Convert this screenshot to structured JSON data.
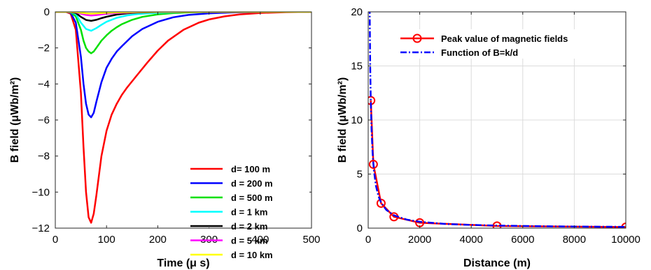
{
  "chart_data": [
    {
      "type": "line",
      "xlabel": "Time (μ s)",
      "ylabel": "B field (μWb/m²)",
      "xlim": [
        0,
        500
      ],
      "ylim": [
        -12,
        0
      ],
      "xticks": [
        0,
        100,
        200,
        300,
        400,
        500
      ],
      "yticks": [
        -12,
        -10,
        -8,
        -6,
        -4,
        -2,
        0
      ],
      "grid": false,
      "legend_position": "lower-right",
      "series": [
        {
          "name": "d= 100 m",
          "color": "#ff0000",
          "x": [
            0,
            20,
            30,
            40,
            50,
            55,
            60,
            65,
            70,
            75,
            80,
            90,
            100,
            110,
            120,
            130,
            140,
            160,
            180,
            200,
            220,
            250,
            280,
            300,
            330,
            360,
            400,
            450,
            500
          ],
          "y": [
            0,
            0,
            -0.1,
            -1.0,
            -4.5,
            -7.5,
            -10.0,
            -11.4,
            -11.7,
            -11.2,
            -10.2,
            -8.0,
            -6.6,
            -5.7,
            -5.1,
            -4.6,
            -4.2,
            -3.5,
            -2.8,
            -2.15,
            -1.6,
            -1.0,
            -0.6,
            -0.42,
            -0.25,
            -0.14,
            -0.06,
            -0.02,
            0
          ]
        },
        {
          "name": "d = 200 m",
          "color": "#0000ff",
          "x": [
            0,
            20,
            30,
            40,
            50,
            55,
            60,
            65,
            70,
            75,
            80,
            90,
            100,
            110,
            120,
            130,
            150,
            170,
            200,
            230,
            260,
            300,
            350,
            400,
            450,
            500
          ],
          "y": [
            0,
            0,
            -0.05,
            -0.6,
            -2.5,
            -4.0,
            -5.1,
            -5.7,
            -5.85,
            -5.6,
            -5.0,
            -3.9,
            -3.1,
            -2.6,
            -2.2,
            -1.9,
            -1.35,
            -0.95,
            -0.55,
            -0.3,
            -0.17,
            -0.08,
            -0.03,
            -0.01,
            0,
            0
          ]
        },
        {
          "name": "d = 500 m",
          "color": "#00e000",
          "x": [
            0,
            20,
            30,
            40,
            50,
            55,
            60,
            65,
            70,
            75,
            80,
            90,
            100,
            110,
            120,
            130,
            150,
            170,
            200,
            230,
            260,
            300,
            350,
            400,
            500
          ],
          "y": [
            0,
            0,
            -0.02,
            -0.25,
            -1.0,
            -1.6,
            -2.0,
            -2.2,
            -2.3,
            -2.2,
            -2.0,
            -1.6,
            -1.3,
            -1.05,
            -0.85,
            -0.68,
            -0.44,
            -0.28,
            -0.14,
            -0.07,
            -0.03,
            -0.01,
            0,
            0,
            0
          ]
        },
        {
          "name": "d = 1 km",
          "color": "#00ffff",
          "x": [
            0,
            20,
            30,
            40,
            50,
            60,
            70,
            80,
            90,
            100,
            120,
            140,
            160,
            200,
            250,
            300,
            400,
            500
          ],
          "y": [
            0,
            0,
            -0.01,
            -0.12,
            -0.6,
            -0.95,
            -1.05,
            -0.9,
            -0.72,
            -0.55,
            -0.33,
            -0.2,
            -0.12,
            -0.05,
            -0.01,
            0,
            0,
            0
          ]
        },
        {
          "name": "d = 2 km",
          "color": "#000000",
          "x": [
            0,
            20,
            30,
            40,
            50,
            60,
            70,
            80,
            90,
            100,
            120,
            140,
            160,
            200,
            300,
            500
          ],
          "y": [
            0,
            0,
            -0.01,
            -0.06,
            -0.28,
            -0.45,
            -0.5,
            -0.44,
            -0.35,
            -0.27,
            -0.15,
            -0.08,
            -0.04,
            -0.01,
            0,
            0
          ]
        },
        {
          "name": "d = 5 km",
          "color": "#ff00ff",
          "x": [
            0,
            20,
            40,
            50,
            60,
            70,
            80,
            100,
            120,
            160,
            200,
            500
          ],
          "y": [
            0,
            0,
            -0.02,
            -0.1,
            -0.17,
            -0.2,
            -0.18,
            -0.11,
            -0.06,
            -0.02,
            0,
            0
          ]
        },
        {
          "name": "d = 10 km",
          "color": "#ffff00",
          "x": [
            0,
            20,
            40,
            50,
            60,
            70,
            80,
            100,
            120,
            160,
            200,
            500
          ],
          "y": [
            0,
            0,
            -0.01,
            -0.05,
            -0.08,
            -0.1,
            -0.09,
            -0.05,
            -0.03,
            -0.01,
            0,
            0
          ]
        }
      ]
    },
    {
      "type": "line",
      "xlabel": "Distance (m)",
      "ylabel": "B field (μWb/m²)",
      "xlim": [
        0,
        10000
      ],
      "ylim": [
        0,
        20
      ],
      "xticks": [
        0,
        2000,
        4000,
        6000,
        8000,
        10000
      ],
      "yticks": [
        0,
        5,
        10,
        15,
        20
      ],
      "grid": true,
      "legend_position": "top-right",
      "series": [
        {
          "name": "Peak value of magnetic fields",
          "color": "#ff0000",
          "marker": "circle",
          "x": [
            100,
            200,
            500,
            1000,
            2000,
            5000,
            10000
          ],
          "y": [
            11.8,
            5.9,
            2.3,
            1.05,
            0.5,
            0.2,
            0.1
          ]
        },
        {
          "name": "Function of B=k/d",
          "color": "#0000ff",
          "dash": "dashdot",
          "x": [
            55,
            60,
            70,
            80,
            100,
            130,
            170,
            220,
            300,
            400,
            500,
            700,
            1000,
            1500,
            2000,
            3000,
            4000,
            5000,
            6000,
            7000,
            8000,
            9000,
            10000
          ],
          "y": [
            21.5,
            19.7,
            16.9,
            14.8,
            11.8,
            9.08,
            6.94,
            5.36,
            3.93,
            2.95,
            2.36,
            1.69,
            1.18,
            0.79,
            0.59,
            0.39,
            0.3,
            0.24,
            0.2,
            0.17,
            0.15,
            0.13,
            0.12
          ]
        }
      ]
    }
  ]
}
